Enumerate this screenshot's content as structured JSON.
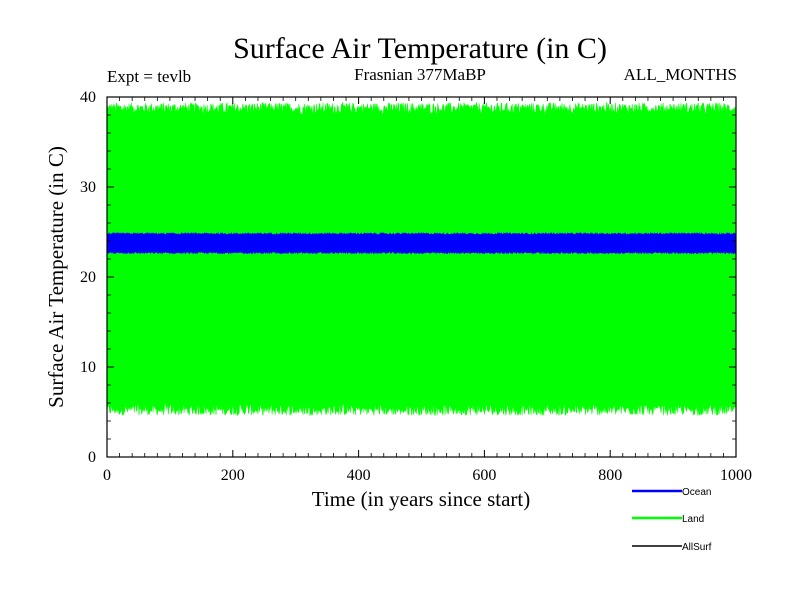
{
  "chart_data": {
    "type": "line",
    "title": "Surface Air Temperature (in C)",
    "subtitle_left": "Expt = tevlb",
    "subtitle_center": "Frasnian 377MaBP",
    "subtitle_right": "ALL_MONTHS",
    "xlabel": "Time (in years since start)",
    "ylabel": "Surface Air Temperature (in C)",
    "xlim": [
      0,
      1000
    ],
    "ylim": [
      0,
      40
    ],
    "xticks": [
      0,
      200,
      400,
      600,
      800,
      1000
    ],
    "yticks": [
      0,
      10,
      20,
      30,
      40
    ],
    "grid": false,
    "legend_position": "bottom-right",
    "series": [
      {
        "name": "Ocean",
        "color": "#0000ff",
        "style": "monthly band",
        "band_min": 22.7,
        "band_max": 24.8,
        "mean": 23.8
      },
      {
        "name": "Land",
        "color": "#00ff00",
        "style": "monthly band",
        "band_min": 5.3,
        "band_max": 38.7,
        "mean": 22.0
      },
      {
        "name": "AllSurf",
        "color": "#000000",
        "style": "line",
        "note": "not visible in plot area"
      }
    ]
  }
}
